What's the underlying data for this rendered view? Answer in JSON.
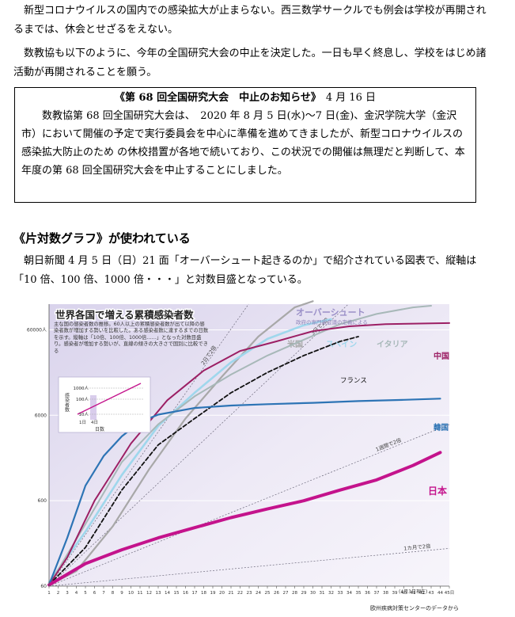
{
  "article": {
    "para1": "新型コロナウイルスの国内での感染拡大が止まらない。西三数学サークルでも例会は学校が再開されるまでは、休会とせざるをえない。",
    "para2": "数教協も以下のように、今年の全国研究大会の中止を決定した。一日も早く終息し、学校をはじめ諸活動が再開されることを願う。"
  },
  "notice": {
    "title": "《第 68 回全国研究大会　中止のお知らせ》",
    "date": "4 月 16 日",
    "body": "数教協第 68 回全国研究大会は、　2020 年 8 月 5 日(水)～7 日(金)、金沢学院大学（金沢市）において開催の予定で実行委員会を中心に準備を進めてきましたが、新型コロナウイルスの感染拡大防止のため の休校措置が各地で続いており、この状況での開催は無理だと判断して、本年度の第 68 回全国研究大会を中止することにしました。"
  },
  "section": {
    "heading": "《片対数グラフ》が使われている",
    "para": "朝日新聞 4 月 5 日（日）21 面「オーバーシュート起きるのか」で紹介されている図表で、縦軸は「10 倍、100 倍、1000 倍・・・」と対数目盛となっている。"
  },
  "chart_data": {
    "type": "line",
    "title": "世界各国で増える累積感染者数",
    "description": "主な国の感染者数の推移。60人以上の累積感染者数が出て以降の感染者数が増加する勢いを比較した。ある感染者数に達するまでの日数を示す。縦軸は「10倍、100倍、1000倍……」となった対数目盛り。感染者が増加する勢いが、直線の傾きの大きさで国別に比較できる",
    "yscale": "log",
    "ylim": [
      60,
      120000
    ],
    "xlim": [
      1,
      45
    ],
    "y_ticks": [
      {
        "value": 60,
        "label": "60"
      },
      {
        "value": 600,
        "label": "600"
      },
      {
        "value": 6000,
        "label": "6000"
      },
      {
        "value": 60000,
        "label": "60000人"
      }
    ],
    "x_ticks": [
      1,
      2,
      3,
      4,
      5,
      6,
      7,
      8,
      9,
      10,
      11,
      12,
      13,
      14,
      15,
      16,
      17,
      18,
      19,
      20,
      21,
      22,
      23,
      24,
      25,
      26,
      27,
      28,
      29,
      30,
      31,
      32,
      33,
      34,
      35,
      36,
      37,
      38,
      39,
      40,
      41,
      42,
      43,
      44,
      45
    ],
    "x_end_label": "45日",
    "x_note": "(4月3日現在)",
    "source": "欧州疾病対策センターのデータから",
    "reference_lines": [
      {
        "label": "2日で2倍",
        "doubling_days": 2
      },
      {
        "label": "3日で2倍",
        "doubling_days": 3
      },
      {
        "label": "1週間で2倍",
        "doubling_days": 7
      },
      {
        "label": "1カ月で2倍",
        "doubling_days": 30
      }
    ],
    "overshoot": {
      "label": "オーバーシュート",
      "note": "政府の専門家会議の定義による"
    },
    "inset": {
      "ylabel": "感染者数",
      "xlabel": "日数",
      "y_ticks": [
        "1000人",
        "100人",
        "10人"
      ],
      "x_ticks": [
        "1日",
        "4日"
      ]
    },
    "series": [
      {
        "name": "米国",
        "color": "#a8a8a8",
        "width": 2.2,
        "points": [
          [
            1,
            62
          ],
          [
            4,
            90
          ],
          [
            8,
            300
          ],
          [
            12,
            1400
          ],
          [
            16,
            5500
          ],
          [
            20,
            17000
          ],
          [
            24,
            50000
          ],
          [
            28,
            110000
          ],
          [
            30,
            130000
          ]
        ]
      },
      {
        "name": "スペイン",
        "color": "#9fd7ec",
        "width": 2.6,
        "points": [
          [
            1,
            66
          ],
          [
            5,
            260
          ],
          [
            9,
            1200
          ],
          [
            13,
            4500
          ],
          [
            17,
            11000
          ],
          [
            21,
            25000
          ],
          [
            25,
            47000
          ],
          [
            29,
            68000
          ],
          [
            32,
            80000
          ]
        ]
      },
      {
        "name": "イタリア",
        "color": "#a7b8b8",
        "width": 2,
        "points": [
          [
            1,
            62
          ],
          [
            5,
            320
          ],
          [
            9,
            1700
          ],
          [
            13,
            4700
          ],
          [
            17,
            10000
          ],
          [
            21,
            18000
          ],
          [
            25,
            30000
          ],
          [
            29,
            46000
          ],
          [
            33,
            70000
          ],
          [
            37,
            92000
          ],
          [
            41,
            110000
          ],
          [
            43,
            115000
          ]
        ]
      },
      {
        "name": "中国",
        "color": "#9c1f64",
        "width": 2,
        "points": [
          [
            1,
            62
          ],
          [
            3,
            130
          ],
          [
            6,
            600
          ],
          [
            10,
            2800
          ],
          [
            14,
            9000
          ],
          [
            18,
            20000
          ],
          [
            22,
            34000
          ],
          [
            26,
            44000
          ],
          [
            30,
            58000
          ],
          [
            34,
            66000
          ],
          [
            38,
            70000
          ],
          [
            45,
            72000
          ]
        ]
      },
      {
        "name": "フランス",
        "color": "#111111",
        "width": 1.8,
        "dash": "5,3",
        "points": [
          [
            1,
            62
          ],
          [
            5,
            170
          ],
          [
            9,
            800
          ],
          [
            13,
            2700
          ],
          [
            17,
            5500
          ],
          [
            21,
            11000
          ],
          [
            25,
            19000
          ],
          [
            29,
            30000
          ],
          [
            33,
            44000
          ],
          [
            35,
            50000
          ]
        ]
      },
      {
        "name": "韓国",
        "color": "#2d74b5",
        "width": 2.2,
        "points": [
          [
            1,
            62
          ],
          [
            3,
            220
          ],
          [
            5,
            900
          ],
          [
            7,
            2000
          ],
          [
            9,
            3400
          ],
          [
            11,
            5000
          ],
          [
            13,
            6100
          ],
          [
            17,
            7300
          ],
          [
            21,
            7800
          ],
          [
            25,
            8100
          ],
          [
            30,
            8400
          ],
          [
            35,
            8800
          ],
          [
            40,
            9100
          ],
          [
            44,
            9400
          ]
        ]
      },
      {
        "name": "日本",
        "color": "#c4138c",
        "width": 4,
        "points": [
          [
            1,
            62
          ],
          [
            5,
            110
          ],
          [
            9,
            160
          ],
          [
            13,
            220
          ],
          [
            17,
            290
          ],
          [
            21,
            380
          ],
          [
            25,
            480
          ],
          [
            29,
            600
          ],
          [
            33,
            800
          ],
          [
            37,
            1050
          ],
          [
            41,
            1550
          ],
          [
            44,
            2200
          ]
        ]
      }
    ]
  }
}
